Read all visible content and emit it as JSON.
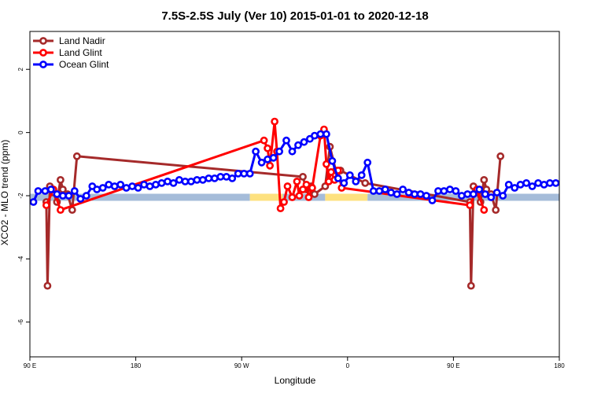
{
  "chart_data": {
    "type": "line",
    "title": "7.5S-2.5S July (Ver 10)   2015-01-01 to 2020-12-18",
    "xlabel": "Longitude",
    "ylabel": "XCO2 - MLO trend (ppm)",
    "xlim": [
      90,
      540
    ],
    "ylim": [
      -7.1,
      3.2
    ],
    "x_ticks": [
      {
        "value": 90,
        "label": "90 E"
      },
      {
        "value": 180,
        "label": "180"
      },
      {
        "value": 270,
        "label": "90 W"
      },
      {
        "value": 360,
        "label": "0"
      },
      {
        "value": 450,
        "label": "90 E"
      },
      {
        "value": 540,
        "label": "180"
      }
    ],
    "y_ticks": [
      {
        "value": 2,
        "label": "2"
      },
      {
        "value": 0,
        "label": "0"
      },
      {
        "value": -2,
        "label": "-2"
      },
      {
        "value": -4,
        "label": "-4"
      },
      {
        "value": -6,
        "label": "-6"
      }
    ],
    "legend_position": "top-left",
    "surface_band": {
      "y_center": -2.05,
      "segments": [
        {
          "x0": 90,
          "x1": 277,
          "type": "ocean"
        },
        {
          "x0": 277,
          "x1": 305,
          "type": "land"
        },
        {
          "x0": 305,
          "x1": 341,
          "type": "ocean"
        },
        {
          "x0": 341,
          "x1": 377,
          "type": "land"
        },
        {
          "x0": 377,
          "x1": 540,
          "type": "ocean"
        }
      ],
      "colors": {
        "ocean": "#a5bcd9",
        "land": "#fde17f"
      }
    },
    "series": [
      {
        "name": "Land Nadir",
        "color": "#a52a2a",
        "x": [
          104,
          105,
          107,
          110,
          113,
          116,
          118,
          122,
          126,
          130,
          322,
          325,
          329,
          332,
          341,
          345,
          350,
          354,
          375,
          464,
          465,
          467,
          470,
          473,
          476,
          478,
          482,
          486,
          490
        ],
        "y": [
          -2.2,
          -4.85,
          -1.7,
          -1.9,
          -2.2,
          -1.5,
          -1.8,
          -1.95,
          -2.45,
          -0.75,
          -1.4,
          -1.8,
          -1.7,
          -1.95,
          -1.7,
          -0.45,
          -1.2,
          -1.2,
          -1.6,
          -2.2,
          -4.85,
          -1.7,
          -1.9,
          -2.2,
          -1.5,
          -1.8,
          -1.95,
          -2.45,
          -0.75
        ]
      },
      {
        "name": "Land Glint",
        "color": "#ff0000",
        "x": [
          104,
          110,
          116,
          289,
          292,
          294,
          298,
          300,
          303,
          306,
          309,
          313,
          317,
          319,
          322,
          325,
          327,
          330,
          337,
          340,
          342,
          344,
          346,
          349,
          352,
          355,
          464,
          470,
          476
        ],
        "y": [
          -2.3,
          -1.8,
          -2.45,
          -0.25,
          -0.5,
          -1.05,
          0.35,
          -0.6,
          -2.4,
          -2.2,
          -1.7,
          -2.05,
          -1.55,
          -2.0,
          -1.8,
          -1.65,
          -2.05,
          -1.75,
          -0.1,
          0.1,
          -1.0,
          -1.55,
          -1.25,
          -1.5,
          -1.2,
          -1.75,
          -2.3,
          -1.8,
          -2.45
        ]
      },
      {
        "name": "Ocean Glint",
        "color": "#0000ff",
        "x": [
          93,
          97,
          103,
          108,
          113,
          118,
          123,
          128,
          133,
          138,
          143,
          147,
          152,
          157,
          162,
          167,
          172,
          177,
          182,
          187,
          192,
          197,
          202,
          207,
          212,
          217,
          222,
          227,
          232,
          237,
          242,
          247,
          252,
          257,
          262,
          267,
          272,
          277,
          282,
          287,
          292,
          297,
          302,
          308,
          313,
          318,
          323,
          328,
          332,
          337,
          342,
          347,
          352,
          357,
          362,
          367,
          372,
          377,
          382,
          387,
          392,
          397,
          402,
          407,
          412,
          417,
          422,
          427,
          432,
          437,
          442,
          447,
          452,
          457,
          462,
          467,
          472,
          477,
          482,
          487,
          492,
          497,
          502,
          507,
          512,
          517,
          522,
          527,
          532,
          537
        ],
        "y": [
          -2.2,
          -1.85,
          -1.85,
          -1.8,
          -1.95,
          -2.0,
          -2.0,
          -1.85,
          -2.1,
          -2.0,
          -1.7,
          -1.8,
          -1.75,
          -1.65,
          -1.7,
          -1.65,
          -1.75,
          -1.7,
          -1.75,
          -1.65,
          -1.7,
          -1.65,
          -1.6,
          -1.55,
          -1.6,
          -1.5,
          -1.55,
          -1.55,
          -1.5,
          -1.5,
          -1.45,
          -1.45,
          -1.4,
          -1.4,
          -1.45,
          -1.3,
          -1.3,
          -1.3,
          -0.6,
          -0.95,
          -0.85,
          -0.8,
          -0.6,
          -0.25,
          -0.6,
          -0.4,
          -0.3,
          -0.2,
          -0.1,
          -0.05,
          -0.05,
          -0.9,
          -1.45,
          -1.6,
          -1.35,
          -1.55,
          -1.35,
          -0.95,
          -1.85,
          -1.85,
          -1.8,
          -1.9,
          -1.95,
          -1.8,
          -1.9,
          -1.95,
          -1.95,
          -2.0,
          -2.15,
          -1.85,
          -1.85,
          -1.8,
          -1.85,
          -2.0,
          -1.95,
          -1.95,
          -1.8,
          -1.95,
          -2.05,
          -1.9,
          -2.0,
          -1.65,
          -1.75,
          -1.65,
          -1.6,
          -1.7,
          -1.6,
          -1.65,
          -1.6,
          -1.6
        ]
      }
    ]
  }
}
